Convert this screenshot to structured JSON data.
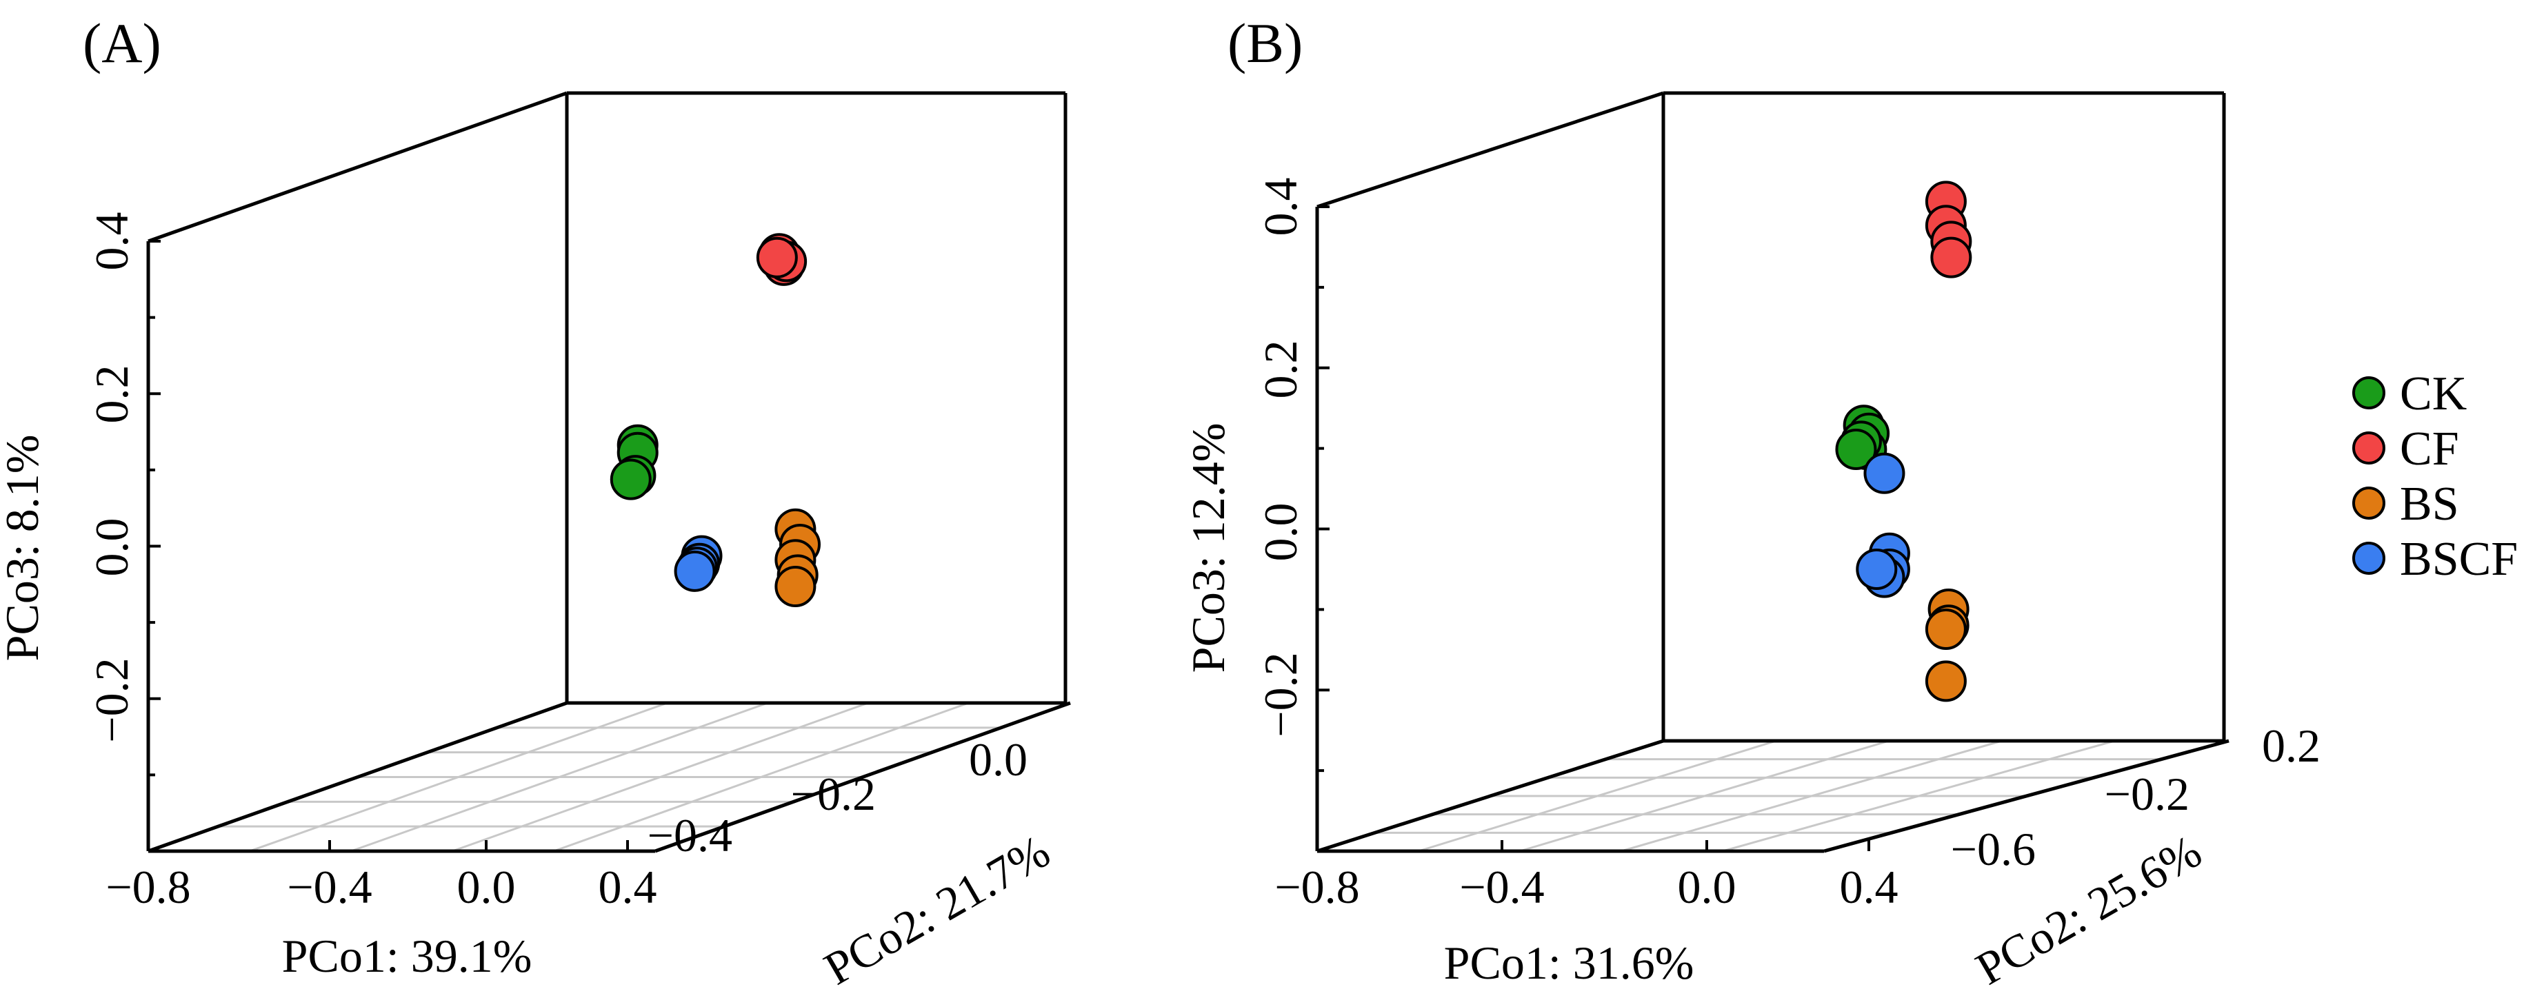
{
  "chart_data": [
    {
      "panel_label": "(A)",
      "type": "scatter3d",
      "x_label": "PCo1: 39.1%",
      "y_label": "PCo2: 21.7%",
      "z_label": "PCo3: 8.1%",
      "x_ticks": [
        "−0.8",
        "−0.4",
        "0.0",
        "0.4"
      ],
      "y_ticks": [
        "−0.4",
        "−0.2",
        "0.0"
      ],
      "z_ticks": [
        "0.4",
        "0.2",
        "0.0",
        "−0.2"
      ],
      "series": [
        {
          "name": "CK",
          "color": "#1a9c1a",
          "points": [
            {
              "pco1": -0.49,
              "pco3": 0.13
            },
            {
              "pco1": -0.49,
              "pco3": 0.12
            },
            {
              "pco1": -0.5,
              "pco3": 0.09
            },
            {
              "pco1": -0.52,
              "pco3": 0.085
            }
          ]
        },
        {
          "name": "CF",
          "color": "#f24545",
          "points": [
            {
              "pco1": 0.13,
              "pco3": 0.38
            },
            {
              "pco1": 0.15,
              "pco3": 0.365
            },
            {
              "pco1": 0.16,
              "pco3": 0.37
            },
            {
              "pco1": 0.12,
              "pco3": 0.375
            }
          ]
        },
        {
          "name": "BS",
          "color": "#e07a12",
          "points": [
            {
              "pco1": 0.2,
              "pco3": 0.02
            },
            {
              "pco1": 0.22,
              "pco3": 0.0
            },
            {
              "pco1": 0.2,
              "pco3": -0.02
            },
            {
              "pco1": 0.21,
              "pco3": -0.04
            },
            {
              "pco1": 0.2,
              "pco3": -0.055
            }
          ]
        },
        {
          "name": "BSCF",
          "color": "#3a7ef0",
          "points": [
            {
              "pco1": -0.21,
              "pco3": -0.015
            },
            {
              "pco1": -0.22,
              "pco3": -0.025
            },
            {
              "pco1": -0.23,
              "pco3": -0.03
            },
            {
              "pco1": -0.24,
              "pco3": -0.035
            }
          ]
        }
      ]
    },
    {
      "panel_label": "(B)",
      "type": "scatter3d",
      "x_label": "PCo1: 31.6%",
      "y_label": "PCo2: 25.6%",
      "z_label": "PCo3: 12.4%",
      "x_ticks": [
        "−0.8",
        "−0.4",
        "0.0",
        "0.4"
      ],
      "y_ticks": [
        "−0.6",
        "−0.2",
        "0.2"
      ],
      "z_ticks": [
        "0.4",
        "0.2",
        "0.0",
        "−0.2"
      ],
      "series": [
        {
          "name": "CK",
          "color": "#1a9c1a",
          "points": [
            {
              "pco1": -0.02,
              "pco3": 0.13
            },
            {
              "pco1": 0.0,
              "pco3": 0.12
            },
            {
              "pco1": -0.01,
              "pco3": 0.1
            },
            {
              "pco1": -0.03,
              "pco3": 0.11
            },
            {
              "pco1": -0.05,
              "pco3": 0.1
            }
          ]
        },
        {
          "name": "CF",
          "color": "#f24545",
          "points": [
            {
              "pco1": 0.3,
              "pco3": 0.41
            },
            {
              "pco1": 0.3,
              "pco3": 0.38
            },
            {
              "pco1": 0.32,
              "pco3": 0.36
            },
            {
              "pco1": 0.32,
              "pco3": 0.34
            }
          ]
        },
        {
          "name": "BS",
          "color": "#e07a12",
          "points": [
            {
              "pco1": 0.31,
              "pco3": -0.1
            },
            {
              "pco1": 0.31,
              "pco3": -0.12
            },
            {
              "pco1": 0.3,
              "pco3": -0.125
            },
            {
              "pco1": 0.3,
              "pco3": -0.19
            }
          ]
        },
        {
          "name": "BSCF",
          "color": "#3a7ef0",
          "points": [
            {
              "pco1": 0.06,
              "pco3": 0.07
            },
            {
              "pco1": 0.08,
              "pco3": -0.03
            },
            {
              "pco1": 0.08,
              "pco3": -0.05
            },
            {
              "pco1": 0.06,
              "pco3": -0.06
            },
            {
              "pco1": 0.03,
              "pco3": -0.05
            }
          ]
        }
      ]
    }
  ],
  "legend": [
    {
      "name": "CK",
      "color": "#1a9c1a"
    },
    {
      "name": "CF",
      "color": "#f24545"
    },
    {
      "name": "BS",
      "color": "#e07a12"
    },
    {
      "name": "BSCF",
      "color": "#3a7ef0"
    }
  ]
}
